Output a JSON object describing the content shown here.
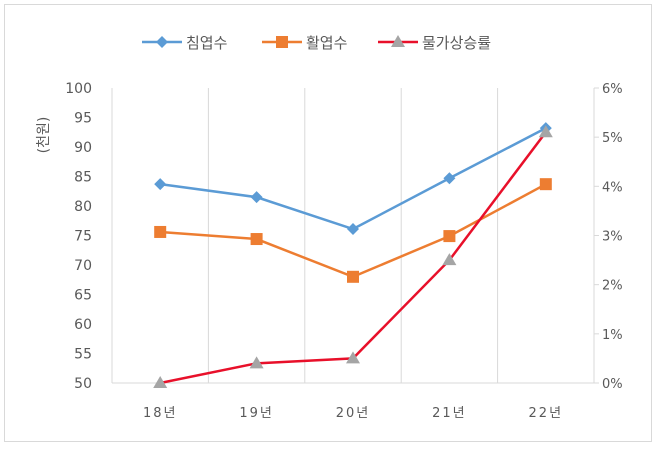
{
  "chart_data": {
    "type": "line",
    "title": "",
    "categories": [
      "18년",
      "19년",
      "20년",
      "21년",
      "22년"
    ],
    "ylabel": "(천원)",
    "ylim": [
      50,
      100
    ],
    "yticks": [
      50,
      55,
      60,
      65,
      70,
      75,
      80,
      85,
      90,
      95,
      100
    ],
    "y2lim": [
      0,
      6
    ],
    "y2ticks": [
      "0%",
      "1%",
      "2%",
      "3%",
      "4%",
      "5%",
      "6%"
    ],
    "legend_position": "top",
    "grid": "vertical",
    "series": [
      {
        "name": "침엽수",
        "axis": "left",
        "color": "#5b9bd5",
        "marker": "diamond",
        "values": [
          83.7,
          81.5,
          76.1,
          84.7,
          93.2
        ]
      },
      {
        "name": "활엽수",
        "axis": "left",
        "color": "#ed7d31",
        "marker": "square",
        "values": [
          75.6,
          74.4,
          68.0,
          74.9,
          83.7
        ]
      },
      {
        "name": "물가상승률",
        "axis": "right",
        "color": "#e8102a",
        "marker": "triangle",
        "marker_color": "#a5a5a5",
        "values": [
          0.0,
          0.4,
          0.5,
          2.5,
          5.1
        ]
      }
    ]
  }
}
